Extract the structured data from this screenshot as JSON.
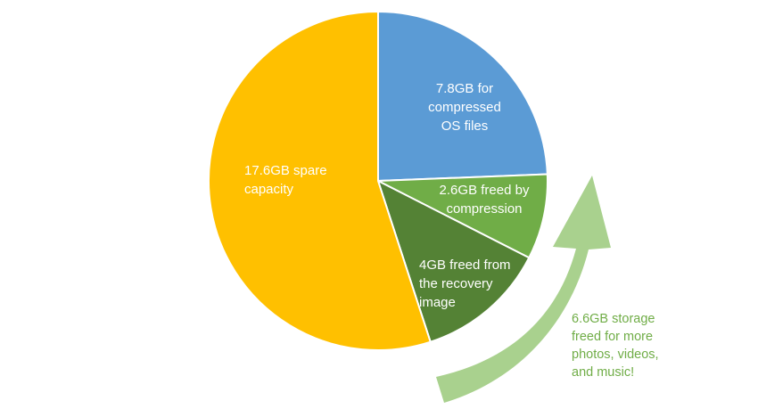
{
  "chart_data": {
    "type": "pie",
    "unit": "GB",
    "slices": [
      {
        "value": 7.8,
        "label_lines": [
          "7.8GB for",
          "compressed",
          "OS files"
        ],
        "color": "#5b9bd5"
      },
      {
        "value": 2.6,
        "label_lines": [
          "2.6GB freed by",
          "compression"
        ],
        "color": "#70ad47"
      },
      {
        "value": 4.0,
        "label_lines": [
          "4GB freed from",
          "the recovery",
          "image"
        ],
        "color": "#548235"
      },
      {
        "value": 17.6,
        "label_lines": [
          "17.6GB spare",
          "capacity"
        ],
        "color": "#ffc000"
      }
    ],
    "annotation": {
      "lines": [
        "6.6GB storage",
        "freed for more",
        "photos, videos,",
        "and music!"
      ],
      "arrow_color": "#a9d18e",
      "text_color": "#70ad47"
    }
  }
}
